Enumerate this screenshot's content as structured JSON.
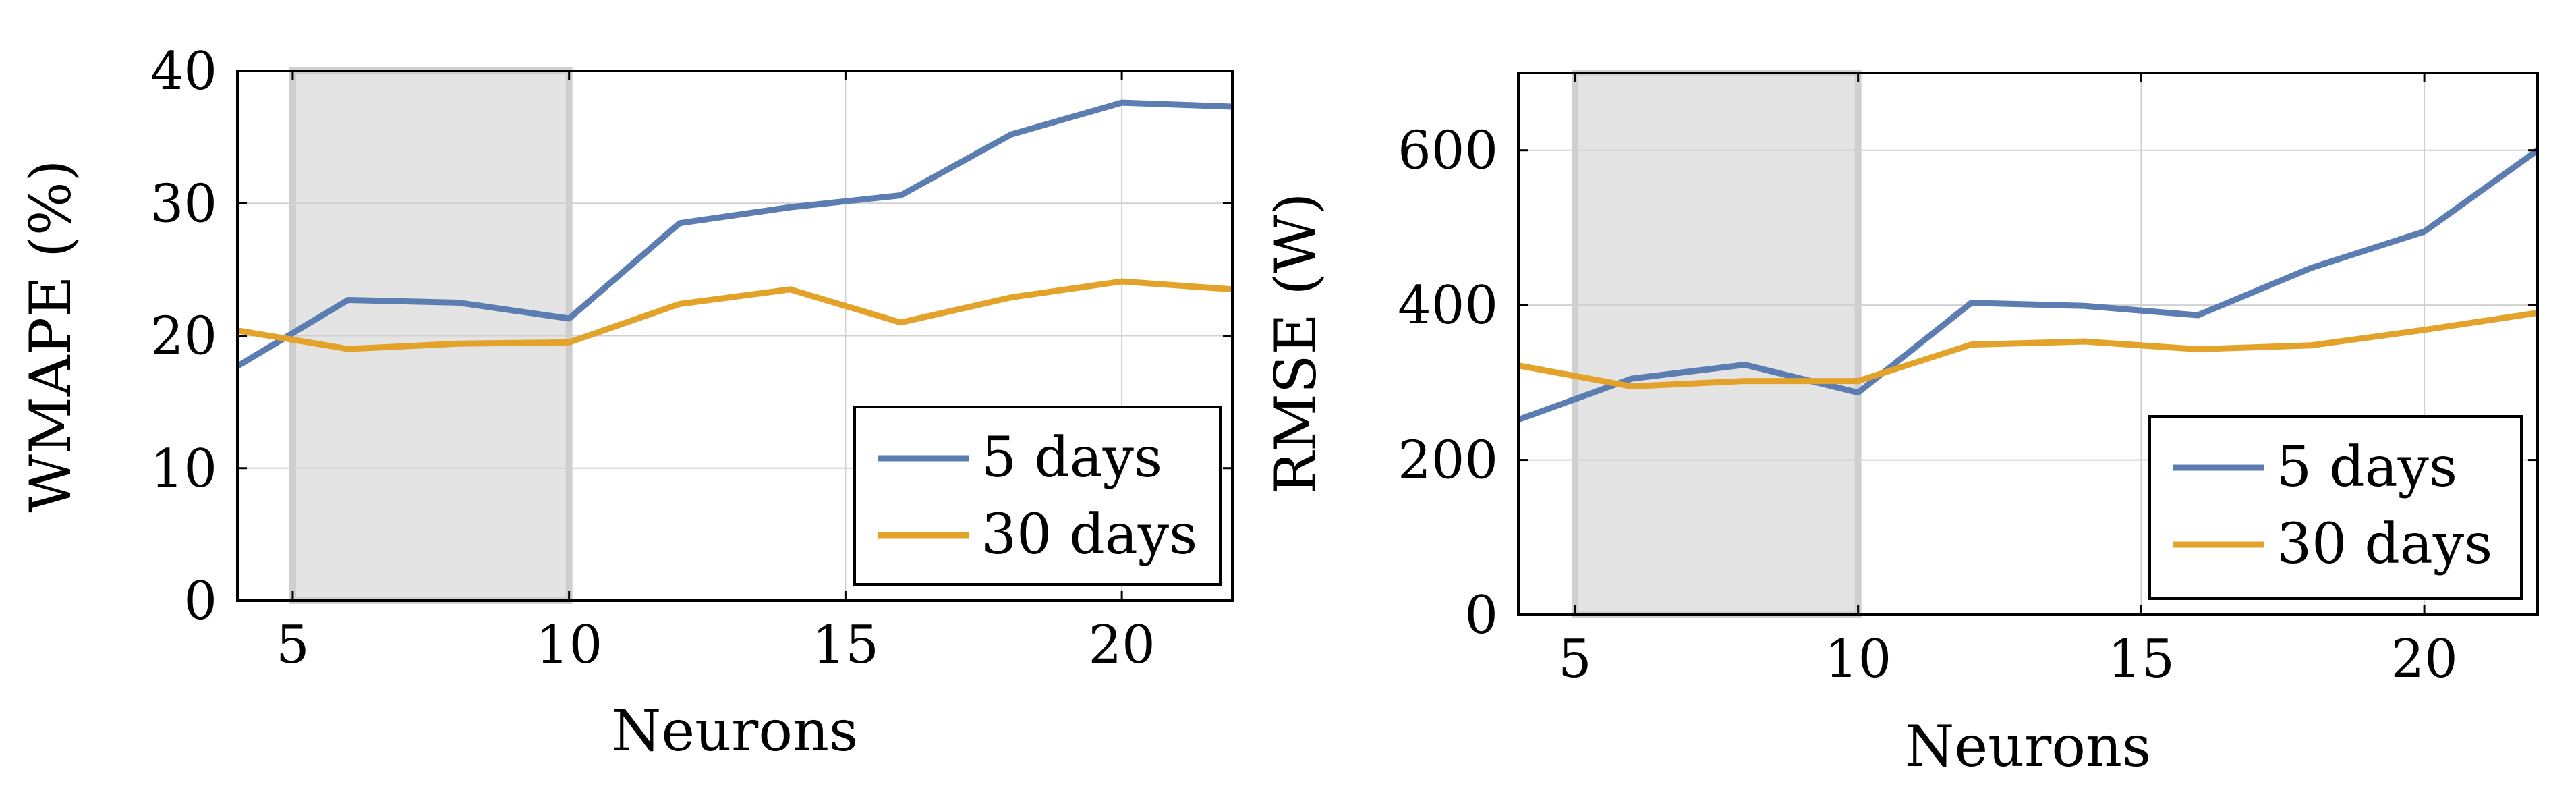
{
  "chart_data": [
    {
      "type": "line",
      "title": "",
      "xlabel": "Neurons",
      "ylabel": "WMAPE (%)",
      "xlim": [
        4,
        22
      ],
      "ylim": [
        0,
        40
      ],
      "xticks": [
        5,
        10,
        15,
        20
      ],
      "yticks": [
        0,
        10,
        20,
        30,
        40
      ],
      "grid": true,
      "shaded_region": [
        5,
        10
      ],
      "x": [
        4,
        6,
        8,
        10,
        12,
        14,
        16,
        18,
        20,
        22
      ],
      "series": [
        {
          "name": "5 days",
          "color": "#5b7db1",
          "values": [
            17.7,
            22.7,
            22.5,
            21.3,
            28.5,
            29.7,
            30.6,
            35.2,
            37.6,
            37.3
          ]
        },
        {
          "name": "30 days",
          "color": "#e3a32a",
          "values": [
            20.4,
            19.0,
            19.4,
            19.5,
            22.4,
            23.5,
            21.0,
            22.9,
            24.1,
            23.5
          ]
        }
      ],
      "legend_position": "bottom-right"
    },
    {
      "type": "line",
      "title": "",
      "xlabel": "Neurons",
      "ylabel": "RMSE (W)",
      "xlim": [
        4,
        22
      ],
      "ylim": [
        0,
        700
      ],
      "xticks": [
        5,
        10,
        15,
        20
      ],
      "yticks": [
        0,
        200,
        400,
        600
      ],
      "grid": true,
      "shaded_region": [
        5,
        10
      ],
      "x": [
        4,
        6,
        8,
        10,
        12,
        14,
        16,
        18,
        20,
        22
      ],
      "series": [
        {
          "name": "5 days",
          "color": "#5b7db1",
          "values": [
            252,
            305,
            323,
            287,
            403,
            399,
            387,
            448,
            495,
            600
          ]
        },
        {
          "name": "30 days",
          "color": "#e3a32a",
          "values": [
            322,
            295,
            302,
            302,
            349,
            353,
            343,
            348,
            368,
            390
          ]
        }
      ],
      "legend_position": "bottom-right"
    }
  ]
}
